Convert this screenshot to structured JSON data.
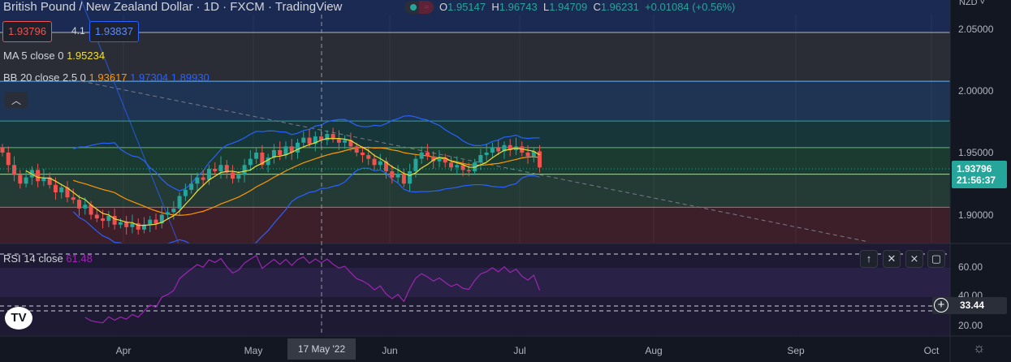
{
  "header": {
    "title": "British Pound / New Zealand Dollar · 1D · FXCM · TradingView",
    "ohlc": {
      "o_label": "O",
      "o": "1.95147",
      "h_label": "H",
      "h": "1.96743",
      "l_label": "L",
      "l": "1.94709",
      "c_label": "C",
      "c": "1.96231",
      "change": "+0.01084 (+0.56%)"
    }
  },
  "quote": {
    "bid": "1.93796",
    "spread": "4.1",
    "ask": "1.93837"
  },
  "indicators": {
    "ma": {
      "label": "MA 5 close 0",
      "value": "1.95234"
    },
    "bb": {
      "label": "BB 20 close 2.5 0",
      "basis": "1.93617",
      "upper": "1.97304",
      "lower": "1.89930"
    },
    "rsi": {
      "label": "RSI 14 close",
      "value": "61.48"
    }
  },
  "price_axis": {
    "currency": "NZD",
    "ticks": [
      "2.05000",
      "2.00000",
      "1.95000",
      "1.90000"
    ],
    "last_price": "1.93796",
    "countdown": "21:56:37"
  },
  "rsi_axis": {
    "ticks": [
      "60.00",
      "40.00",
      "20.00"
    ],
    "crosshair_value": "33.44"
  },
  "time_axis": {
    "ticks": [
      "Apr",
      "May",
      "Jun",
      "Jul",
      "Aug",
      "Sep",
      "Oct"
    ],
    "crosshair_label": "17 May '22"
  },
  "colors": {
    "up": "#26a69a",
    "down": "#ef5350",
    "ma": "#f0e030",
    "bb_basis": "#ff9800",
    "bb_band": "#2962ff",
    "rsi": "#9c27b0"
  },
  "chart_data": {
    "type": "candlestick",
    "closes": [
      1.95,
      1.94,
      1.932,
      1.925,
      1.93,
      1.936,
      1.927,
      1.93,
      1.924,
      1.918,
      1.922,
      1.914,
      1.912,
      1.905,
      1.908,
      1.9,
      1.897,
      1.895,
      1.899,
      1.892,
      1.894,
      1.89,
      1.893,
      1.888,
      1.892,
      1.896,
      1.893,
      1.9,
      1.902,
      1.905,
      1.915,
      1.92,
      1.925,
      1.93,
      1.928,
      1.937,
      1.935,
      1.94,
      1.934,
      1.929,
      1.932,
      1.94,
      1.945,
      1.95,
      1.94,
      1.946,
      1.952,
      1.948,
      1.955,
      1.95,
      1.958,
      1.962,
      1.957,
      1.963,
      1.96,
      1.965,
      1.961,
      1.958,
      1.96,
      1.955,
      1.95,
      1.948,
      1.945,
      1.94,
      1.943,
      1.935,
      1.93,
      1.933,
      1.925,
      1.935,
      1.945,
      1.95,
      1.947,
      1.943,
      1.946,
      1.942,
      1.938,
      1.94,
      1.936,
      1.935,
      1.942,
      1.948,
      1.95,
      1.954,
      1.951,
      1.956,
      1.952,
      1.955,
      1.95,
      1.947,
      1.951,
      1.938
    ],
    "levels": [
      2.0467,
      2.0074,
      1.9754,
      1.954,
      1.9326,
      1.906
    ],
    "ylim": [
      1.876,
      2.073
    ]
  }
}
